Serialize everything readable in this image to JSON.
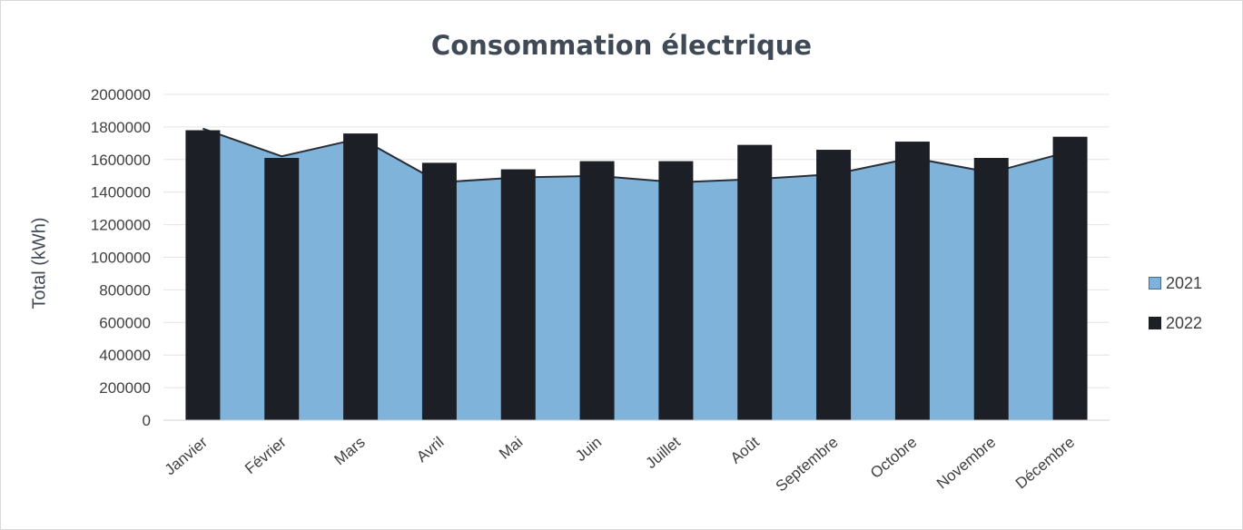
{
  "chart_data": {
    "type": "bar",
    "title": "Consommation électrique",
    "ylabel": "Total (kWh)",
    "xlabel": "",
    "categories": [
      "Janvier",
      "Février",
      "Mars",
      "Avril",
      "Mai",
      "Juin",
      "Juillet",
      "Août",
      "Septembre",
      "Octobre",
      "Novembre",
      "Décembre"
    ],
    "ylim": [
      0,
      2000000
    ],
    "yticks": [
      "0",
      "200000",
      "400000",
      "600000",
      "800000",
      "1000000",
      "1200000",
      "1400000",
      "1600000",
      "1800000",
      "2000000"
    ],
    "grid": true,
    "legend_position": "right",
    "series": [
      {
        "name": "2021",
        "type": "area",
        "color": "#7fb3d9",
        "values": [
          1790000,
          1620000,
          1730000,
          1460000,
          1490000,
          1500000,
          1460000,
          1480000,
          1510000,
          1610000,
          1520000,
          1650000
        ]
      },
      {
        "name": "2022",
        "type": "bar",
        "color": "#1c1f26",
        "values": [
          1780000,
          1610000,
          1760000,
          1580000,
          1540000,
          1590000,
          1590000,
          1690000,
          1660000,
          1710000,
          1610000,
          1740000
        ]
      }
    ]
  }
}
